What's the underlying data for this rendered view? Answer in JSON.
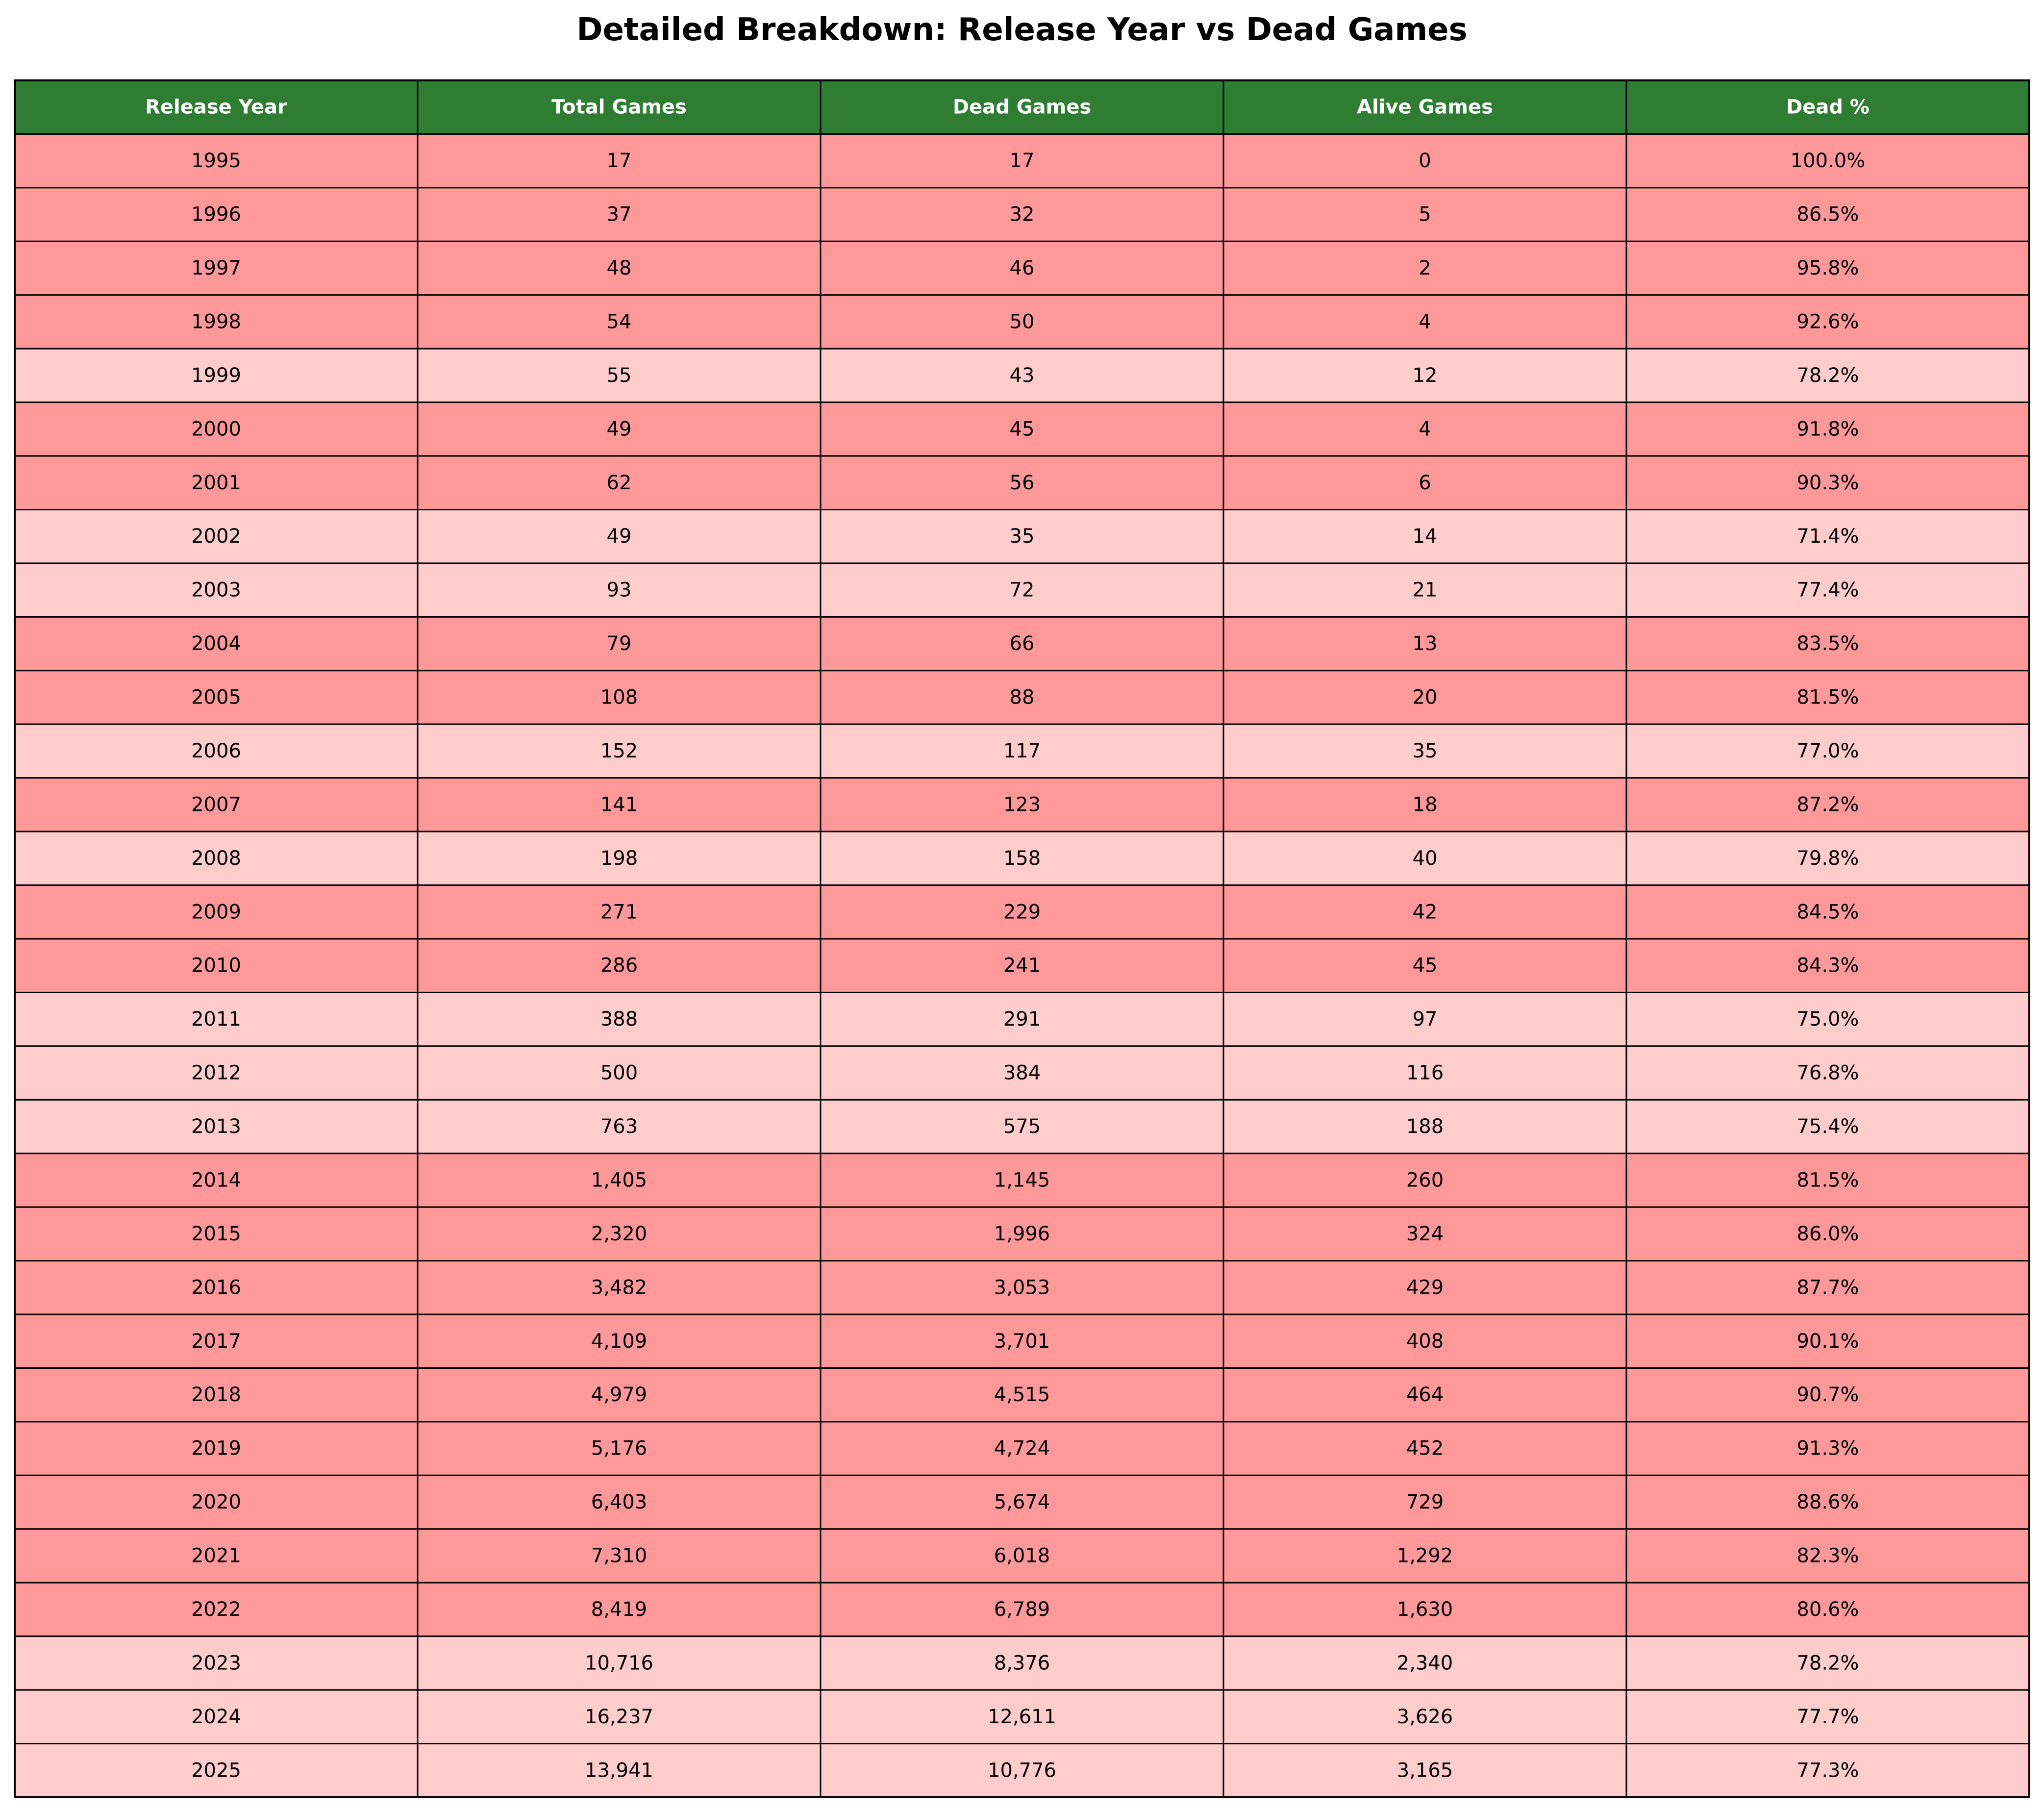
{
  "chart_data": {
    "type": "table",
    "title": "Detailed Breakdown: Release Year vs Dead Games",
    "columns": [
      "Release Year",
      "Total Games",
      "Dead Games",
      "Alive Games",
      "Dead %"
    ],
    "rows": [
      [
        "1995",
        "17",
        "17",
        "0",
        "100.0%"
      ],
      [
        "1996",
        "37",
        "32",
        "5",
        "86.5%"
      ],
      [
        "1997",
        "48",
        "46",
        "2",
        "95.8%"
      ],
      [
        "1998",
        "54",
        "50",
        "4",
        "92.6%"
      ],
      [
        "1999",
        "55",
        "43",
        "12",
        "78.2%"
      ],
      [
        "2000",
        "49",
        "45",
        "4",
        "91.8%"
      ],
      [
        "2001",
        "62",
        "56",
        "6",
        "90.3%"
      ],
      [
        "2002",
        "49",
        "35",
        "14",
        "71.4%"
      ],
      [
        "2003",
        "93",
        "72",
        "21",
        "77.4%"
      ],
      [
        "2004",
        "79",
        "66",
        "13",
        "83.5%"
      ],
      [
        "2005",
        "108",
        "88",
        "20",
        "81.5%"
      ],
      [
        "2006",
        "152",
        "117",
        "35",
        "77.0%"
      ],
      [
        "2007",
        "141",
        "123",
        "18",
        "87.2%"
      ],
      [
        "2008",
        "198",
        "158",
        "40",
        "79.8%"
      ],
      [
        "2009",
        "271",
        "229",
        "42",
        "84.5%"
      ],
      [
        "2010",
        "286",
        "241",
        "45",
        "84.3%"
      ],
      [
        "2011",
        "388",
        "291",
        "97",
        "75.0%"
      ],
      [
        "2012",
        "500",
        "384",
        "116",
        "76.8%"
      ],
      [
        "2013",
        "763",
        "575",
        "188",
        "75.4%"
      ],
      [
        "2014",
        "1,405",
        "1,145",
        "260",
        "81.5%"
      ],
      [
        "2015",
        "2,320",
        "1,996",
        "324",
        "86.0%"
      ],
      [
        "2016",
        "3,482",
        "3,053",
        "429",
        "87.7%"
      ],
      [
        "2017",
        "4,109",
        "3,701",
        "408",
        "90.1%"
      ],
      [
        "2018",
        "4,979",
        "4,515",
        "464",
        "90.7%"
      ],
      [
        "2019",
        "5,176",
        "4,724",
        "452",
        "91.3%"
      ],
      [
        "2020",
        "6,403",
        "5,674",
        "729",
        "88.6%"
      ],
      [
        "2021",
        "7,310",
        "6,018",
        "1,292",
        "82.3%"
      ],
      [
        "2022",
        "8,419",
        "6,789",
        "1,630",
        "80.6%"
      ],
      [
        "2023",
        "10,716",
        "8,376",
        "2,340",
        "78.2%"
      ],
      [
        "2024",
        "16,237",
        "12,611",
        "3,626",
        "77.7%"
      ],
      [
        "2025",
        "13,941",
        "10,776",
        "3,165",
        "77.3%"
      ]
    ],
    "colors": {
      "header_bg": "#2e7d32",
      "header_text": "#ffffff",
      "dark_row": "#ff9999",
      "light_row": "#ffcccc",
      "border": "#000000",
      "cell_text": "#000000"
    },
    "row_shades": [
      "dark",
      "dark",
      "dark",
      "dark",
      "light",
      "dark",
      "dark",
      "light",
      "light",
      "dark",
      "dark",
      "light",
      "dark",
      "light",
      "dark",
      "dark",
      "light",
      "light",
      "light",
      "dark",
      "dark",
      "dark",
      "dark",
      "dark",
      "dark",
      "dark",
      "dark",
      "dark",
      "light",
      "light",
      "light"
    ]
  }
}
